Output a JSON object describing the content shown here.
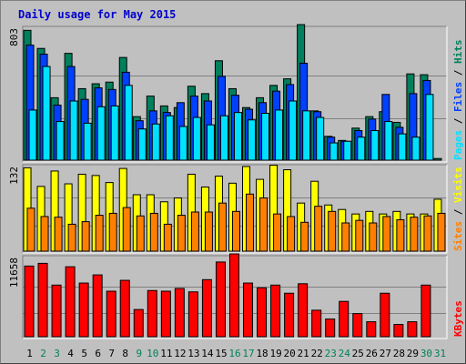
{
  "title": "Daily usage for May 2015",
  "colors": {
    "hits": "#00805c",
    "files": "#0040ff",
    "pages": "#00e0ff",
    "visits": "#ffff00",
    "sites": "#ff8000",
    "kbytes": "#ff0000",
    "weekend": "#00805c",
    "weekday": "#000000",
    "plot_bg": "#c0c0c0"
  },
  "panels": {
    "top": {
      "max_label": "803",
      "right_labels": [
        {
          "text": "Pages",
          "color": "#00e0ff"
        },
        {
          "text": " / ",
          "color": "#000000"
        },
        {
          "text": "Files",
          "color": "#0040ff"
        },
        {
          "text": " / ",
          "color": "#000000"
        },
        {
          "text": "Hits",
          "color": "#00805c"
        }
      ]
    },
    "mid": {
      "max_label": "132",
      "right_labels": [
        {
          "text": "Sites",
          "color": "#ff8000"
        },
        {
          "text": " / ",
          "color": "#000000"
        },
        {
          "text": "Visits",
          "color": "#ffff00"
        }
      ]
    },
    "bot": {
      "max_label": "11658",
      "right_labels": [
        {
          "text": "KBytes",
          "color": "#ff0000"
        }
      ]
    }
  },
  "chart_data": {
    "type": "bar",
    "title": "Daily usage for May 2015",
    "categories": [
      "1",
      "2",
      "3",
      "4",
      "5",
      "6",
      "7",
      "8",
      "9",
      "10",
      "11",
      "12",
      "13",
      "14",
      "15",
      "16",
      "17",
      "18",
      "19",
      "20",
      "21",
      "22",
      "23",
      "24",
      "25",
      "26",
      "27",
      "28",
      "29",
      "30",
      "31"
    ],
    "weekend_days": [
      "2",
      "3",
      "9",
      "10",
      "16",
      "17",
      "23",
      "24",
      "30",
      "31"
    ],
    "series": [
      {
        "name": "Hits",
        "panel": "top",
        "ymax": 803,
        "values": [
          790,
          680,
          380,
          650,
          435,
          465,
          475,
          625,
          265,
          390,
          330,
          320,
          450,
          405,
          605,
          435,
          320,
          380,
          455,
          495,
          825,
          300,
          145,
          120,
          195,
          265,
          295,
          230,
          525,
          520,
          10
        ]
      },
      {
        "name": "Files",
        "panel": "top",
        "ymax": 803,
        "values": [
          700,
          645,
          335,
          570,
          370,
          440,
          430,
          535,
          240,
          300,
          290,
          350,
          390,
          360,
          510,
          395,
          310,
          350,
          420,
          460,
          590,
          295,
          140,
          115,
          180,
          250,
          400,
          200,
          405,
          485,
          0
        ]
      },
      {
        "name": "Pages",
        "panel": "top",
        "ymax": 803,
        "values": [
          305,
          570,
          235,
          360,
          225,
          325,
          330,
          455,
          190,
          220,
          270,
          205,
          260,
          215,
          270,
          290,
          245,
          285,
          305,
          360,
          300,
          260,
          105,
          115,
          140,
          180,
          235,
          160,
          140,
          400,
          0
        ]
      },
      {
        "name": "Visits",
        "panel": "mid",
        "ymax": 132,
        "values": [
          130,
          101,
          125,
          105,
          120,
          118,
          107,
          129,
          88,
          88,
          77,
          83,
          120,
          100,
          117,
          106,
          132,
          112,
          134,
          127,
          75,
          109,
          72,
          65,
          58,
          62,
          58,
          62,
          58,
          58,
          81
        ]
      },
      {
        "name": "Sites",
        "panel": "mid",
        "ymax": 132,
        "values": [
          67,
          54,
          53,
          42,
          46,
          56,
          59,
          68,
          55,
          59,
          42,
          56,
          61,
          61,
          75,
          62,
          89,
          83,
          58,
          54,
          45,
          70,
          62,
          44,
          48,
          44,
          54,
          49,
          53,
          55,
          59
        ]
      },
      {
        "name": "KBytes",
        "panel": "bot",
        "ymax": 11658,
        "values": [
          10400,
          10800,
          7600,
          10300,
          7900,
          9100,
          6700,
          8300,
          4000,
          6800,
          6700,
          7100,
          6600,
          8400,
          11000,
          12200,
          7900,
          7200,
          7600,
          6400,
          7800,
          3900,
          2600,
          5200,
          3400,
          2200,
          6400,
          1800,
          2200,
          7600,
          0
        ]
      }
    ],
    "xlabel": "",
    "ylabel": ""
  }
}
